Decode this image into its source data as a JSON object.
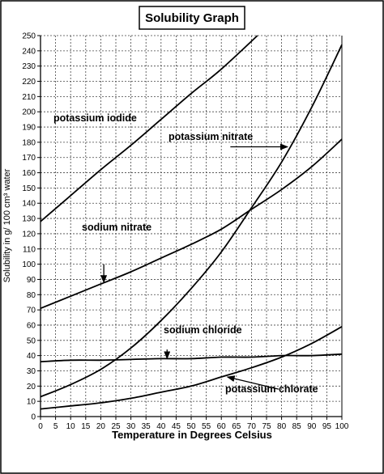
{
  "chart_data": {
    "type": "line",
    "title": "Solubility Graph",
    "xlabel": "Temperature in Degrees Celsius",
    "ylabel": "Solubility in g/ 100 cm³ water",
    "xlim": [
      0,
      100
    ],
    "ylim": [
      0,
      250
    ],
    "x_ticks": [
      0,
      5,
      10,
      15,
      20,
      25,
      30,
      35,
      40,
      45,
      50,
      55,
      60,
      65,
      70,
      75,
      80,
      85,
      90,
      95,
      100
    ],
    "y_ticks": [
      0,
      10,
      20,
      30,
      40,
      50,
      60,
      70,
      80,
      90,
      100,
      110,
      120,
      130,
      140,
      150,
      160,
      170,
      180,
      190,
      200,
      210,
      220,
      230,
      240,
      250
    ],
    "grid": "dashed",
    "series": [
      {
        "name": "potassium iodide",
        "points": [
          [
            0,
            128
          ],
          [
            10,
            145
          ],
          [
            20,
            162
          ],
          [
            30,
            178
          ],
          [
            40,
            195
          ],
          [
            50,
            212
          ],
          [
            60,
            228
          ],
          [
            72,
            250
          ]
        ]
      },
      {
        "name": "potassium nitrate",
        "points": [
          [
            0,
            13
          ],
          [
            10,
            21
          ],
          [
            20,
            31
          ],
          [
            30,
            45
          ],
          [
            40,
            63
          ],
          [
            50,
            84
          ],
          [
            60,
            108
          ],
          [
            70,
            137
          ],
          [
            80,
            167
          ],
          [
            90,
            203
          ],
          [
            100,
            244
          ]
        ]
      },
      {
        "name": "sodium nitrate",
        "points": [
          [
            0,
            71
          ],
          [
            10,
            79
          ],
          [
            20,
            87
          ],
          [
            30,
            95
          ],
          [
            40,
            104
          ],
          [
            50,
            113
          ],
          [
            60,
            123
          ],
          [
            70,
            136
          ],
          [
            80,
            149
          ],
          [
            90,
            164
          ],
          [
            100,
            182
          ]
        ]
      },
      {
        "name": "sodium chloride",
        "points": [
          [
            0,
            36
          ],
          [
            10,
            37
          ],
          [
            20,
            37
          ],
          [
            30,
            37.5
          ],
          [
            40,
            38
          ],
          [
            50,
            38
          ],
          [
            60,
            39
          ],
          [
            70,
            39
          ],
          [
            80,
            40
          ],
          [
            90,
            40
          ],
          [
            100,
            41
          ]
        ]
      },
      {
        "name": "potassium chlorate",
        "points": [
          [
            0,
            5
          ],
          [
            10,
            7
          ],
          [
            20,
            9
          ],
          [
            30,
            12
          ],
          [
            40,
            16
          ],
          [
            50,
            20
          ],
          [
            60,
            26
          ],
          [
            70,
            32
          ],
          [
            80,
            39
          ],
          [
            90,
            48
          ],
          [
            100,
            59
          ]
        ]
      }
    ],
    "annotations": [
      {
        "text": "potassium iodide",
        "series": "potassium iodide"
      },
      {
        "text": "potassium nitrate",
        "series": "potassium nitrate"
      },
      {
        "text": "sodium nitrate",
        "series": "sodium nitrate"
      },
      {
        "text": "sodium chloride",
        "series": "sodium chloride"
      },
      {
        "text": "potassium chlorate",
        "series": "potassium chlorate"
      }
    ]
  }
}
